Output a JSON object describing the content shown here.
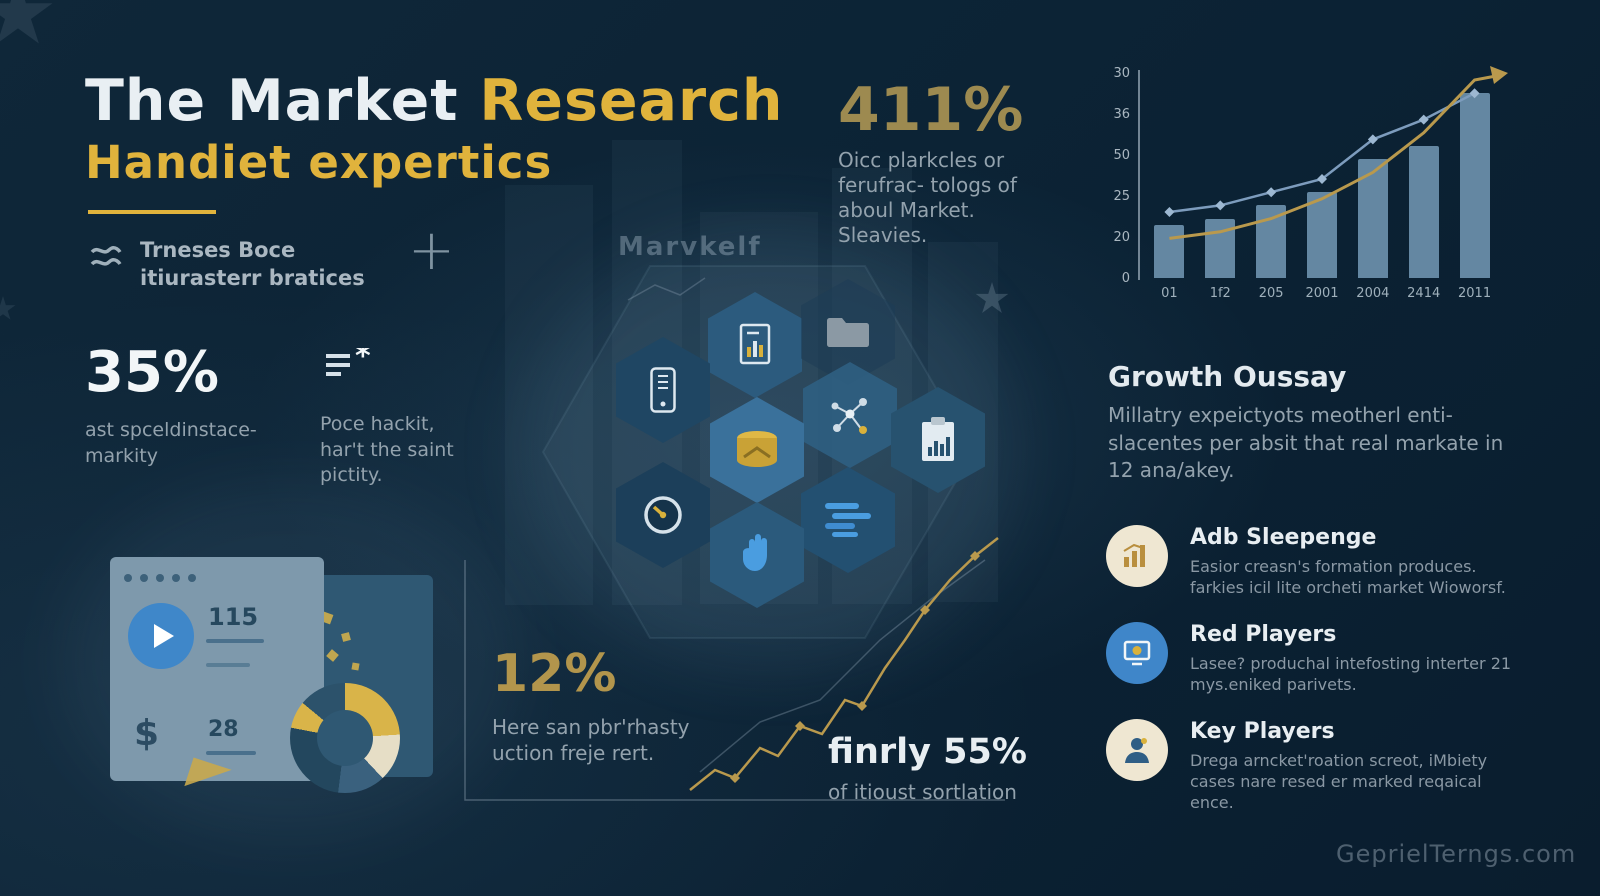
{
  "theme": {
    "background": "#0b2234",
    "gold_accent": "#e0b33c",
    "muted_gold": "#9d8a50",
    "white_text": "#f2f6f8",
    "gray_text": "#93a2ad",
    "bar_color": "#87afcd",
    "blue_accent": "#3f86c9"
  },
  "header": {
    "title_white": "The Market",
    "title_gold": "Research",
    "subtitle": "Handiet expertics",
    "tagline_line1": "Trneses Boce",
    "tagline_line2": "itiurasterr bratices",
    "plus": "+"
  },
  "stats": {
    "stat35": {
      "value": "35%",
      "caption": "ast spceldinstace-markity"
    },
    "note_text": "Poce hackit, har't the saint pictity.",
    "stat411": {
      "value": "411%",
      "caption": "Oicc plarkcles or ferufrac- tologs of aboul Market. Sleavies."
    },
    "stat12": {
      "value": "12%",
      "caption": "Here san pbr'rhasty uction freje rert."
    },
    "stat55": {
      "value": "finrly 55%",
      "caption": "of itioust sortlation"
    }
  },
  "center": {
    "label": "Marvkelf"
  },
  "illustration": {
    "num1": "115",
    "num2": "28",
    "dollar": "$"
  },
  "chart_data": {
    "type": "bar",
    "title": "",
    "xlabel": "",
    "ylabel": "",
    "categories": [
      "01",
      "1f2",
      "205",
      "2001",
      "2004",
      "2414",
      "2011"
    ],
    "yticks_displayed": [
      "30",
      "36",
      "50",
      "25",
      "20",
      "0"
    ],
    "ylim": [
      0,
      30
    ],
    "grid": false,
    "legend": "none",
    "series": [
      {
        "name": "bars",
        "type": "bar",
        "values": [
          8,
          9,
          11,
          13,
          18,
          20,
          28
        ]
      },
      {
        "name": "blue-line",
        "type": "line",
        "values": [
          10,
          11,
          13,
          15,
          21,
          24,
          28
        ]
      },
      {
        "name": "gold-line",
        "type": "line",
        "values": [
          6,
          7,
          9,
          12,
          16,
          22,
          30
        ]
      }
    ]
  },
  "growth": {
    "title": "Growth Oussay",
    "body": "Millatry expeictyots meotherl enti-slacentes per absit that real markate in 12 ana/akey."
  },
  "players": [
    {
      "title": "Adb Sleepenge",
      "desc": "Easior creasn's formation produces. farkies icil lite orcheti market Wioworsf.",
      "icon": "growth-bars-icon"
    },
    {
      "title": "Red Players",
      "desc": "Lasee? produchal intefosting interter 21 mys.eniked parivets.",
      "icon": "monitor-badge-icon"
    },
    {
      "title": "Key Players",
      "desc": "Drega arncket'roation screot, iMbiety cases nare resed er marked reqaical ence.",
      "icon": "person-icon"
    }
  ],
  "watermark": "GeprielTerngs.com",
  "icons": {
    "scribble-icon": "double-wave",
    "plus-icon": "+",
    "note-lines-icon": "lines+asterisk",
    "document-chart-icon": "document with bars",
    "folder-icon": "folder",
    "smartphone-icon": "phone",
    "database-icon": "gold cylinder",
    "network-icon": "connected nodes",
    "gauge-icon": "dial",
    "clipboard-chart-icon": "clipboard with bars",
    "list-icon": "blue text lines",
    "hand-icon": "blue hand",
    "growth-bars-icon": "bars with arrow",
    "monitor-badge-icon": "screen with gold dot",
    "person-icon": "person silhouette",
    "play-icon": "play triangle",
    "dollar-icon": "$",
    "star-icon": "star"
  }
}
